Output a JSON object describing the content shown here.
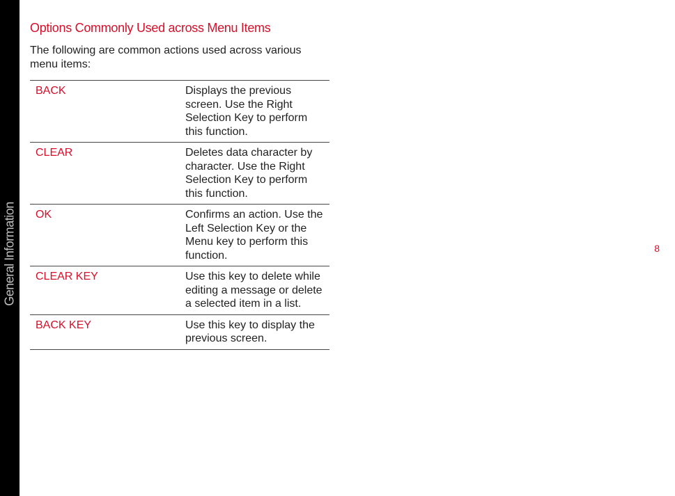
{
  "sidebar": {
    "section_label": "General Information"
  },
  "page": {
    "heading": "Options Commonly Used across Menu Items",
    "intro": "The following are common actions used across various menu items:",
    "page_number": "8"
  },
  "options_table": {
    "rows": [
      {
        "term": "BACK",
        "desc": "Displays the previous screen. Use the Right Selection Key to perform this function."
      },
      {
        "term": "CLEAR",
        "desc": "Deletes data character by character. Use the Right Selection Key to perform this function."
      },
      {
        "term": "OK",
        "desc": "Confirms an action. Use the Left Selection Key or the Menu key to perform this function."
      },
      {
        "term": "CLEAR KEY",
        "desc": "Use this key to delete while editing a message or delete a selected item in a list."
      },
      {
        "term": "BACK KEY",
        "desc": "Use this key to display the previous screen."
      }
    ]
  },
  "colors": {
    "accent": "#d60f2a",
    "body_text": "#222222",
    "sidebar_bg": "#000000",
    "sidebar_text": "#bfbfbf",
    "rule": "#444444",
    "page_bg": "#ffffff"
  }
}
